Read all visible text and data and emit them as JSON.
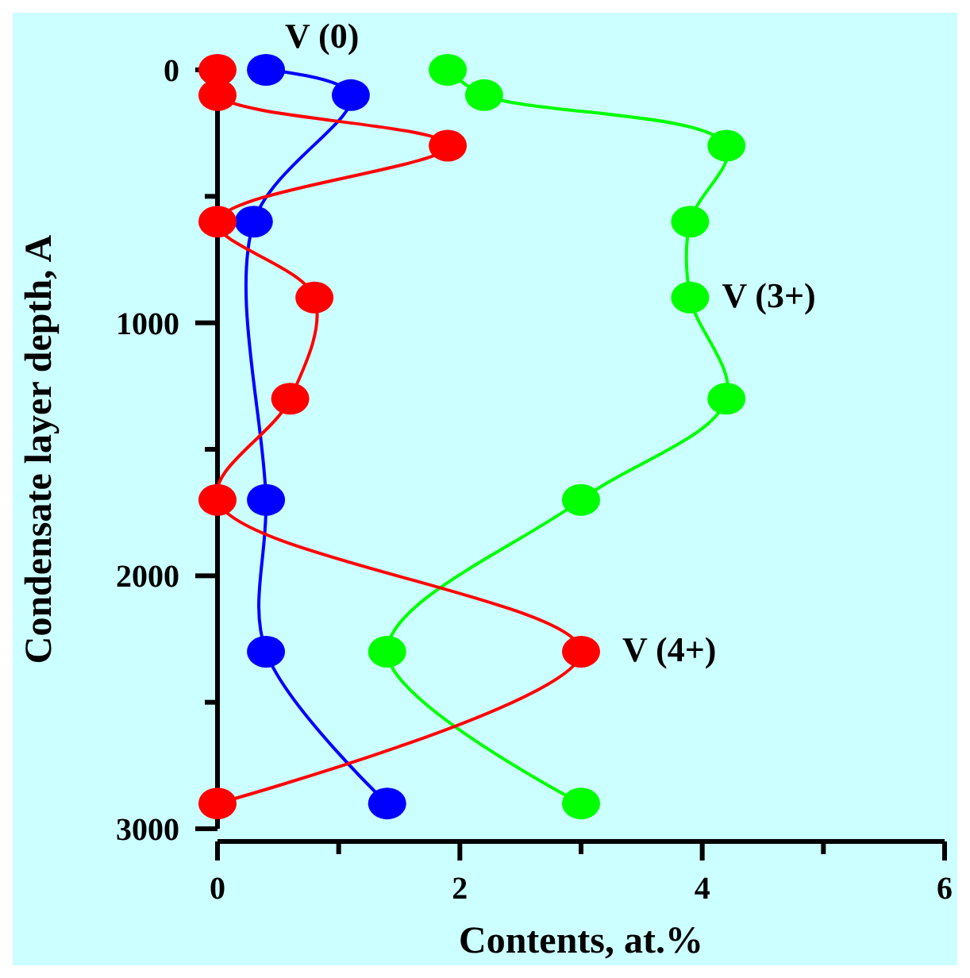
{
  "chart_data": {
    "type": "line",
    "xlabel": "Contents, at.%",
    "ylabel": "Condensate layer depth, A",
    "xlim": [
      0,
      6
    ],
    "xticks": [
      0,
      {
        "value": 1,
        "label": null
      },
      2,
      {
        "value": 3,
        "label": null
      },
      4,
      {
        "value": 5,
        "label": null
      },
      6
    ],
    "ylim": [
      3000,
      0
    ],
    "yticks": [
      0,
      {
        "value": 500,
        "label": null
      },
      1000,
      {
        "value": 1500,
        "label": null
      },
      2000,
      {
        "value": 2500,
        "label": null
      },
      3000
    ],
    "grid": false,
    "marker": "circle",
    "line_style": "solid",
    "series": [
      {
        "name": "V (0)",
        "color": "#0000ff",
        "x": [
          0.4,
          1.1,
          0.3,
          0.4,
          0.4,
          1.4
        ],
        "values": [
          0,
          100,
          600,
          1700,
          2300,
          2900
        ]
      },
      {
        "name": "V (3+)",
        "color": "#00ff00",
        "x": [
          1.9,
          2.2,
          4.2,
          3.9,
          3.9,
          4.2,
          3.0,
          1.4,
          3.0
        ],
        "values": [
          0,
          100,
          300,
          600,
          900,
          1300,
          1700,
          2300,
          2900
        ]
      },
      {
        "name": "V (4+)",
        "color": "#ff0000",
        "x": [
          0,
          0,
          1.9,
          0,
          0.8,
          0.6,
          0,
          3.0,
          0
        ],
        "values": [
          0,
          100,
          300,
          600,
          900,
          1300,
          1700,
          2300,
          2900
        ]
      }
    ]
  }
}
